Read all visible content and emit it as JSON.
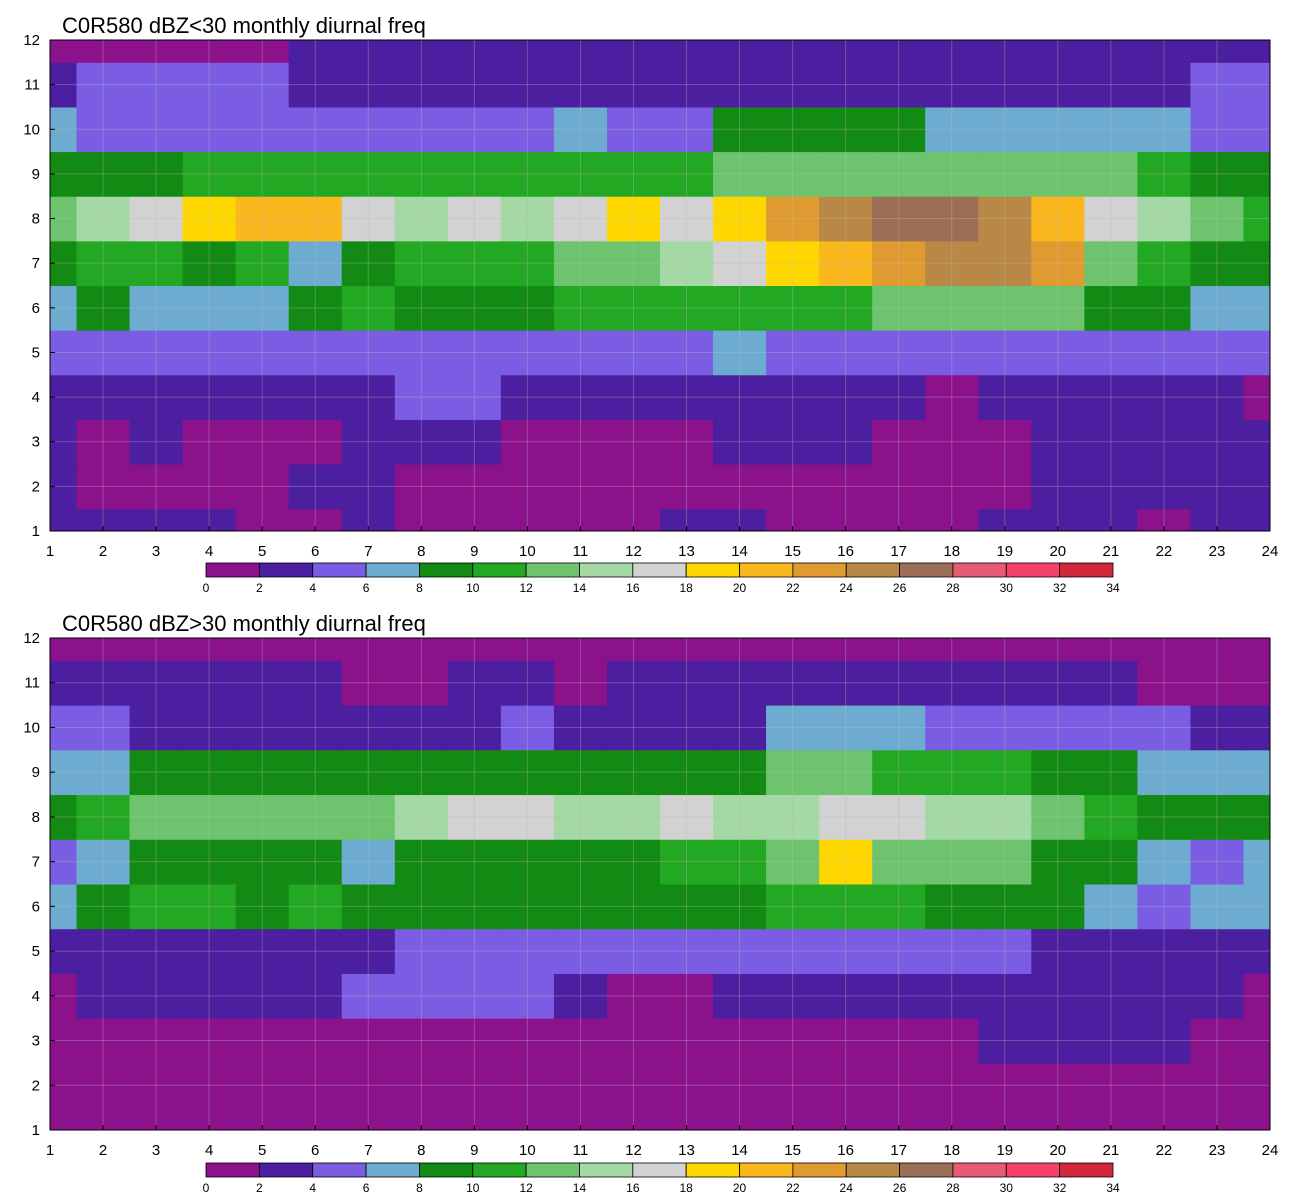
{
  "chart_data": [
    {
      "type": "heatmap",
      "title": "C0R580 dBZ<30 monthly diurnal freq",
      "xlabel": "",
      "ylabel": "",
      "xlim": [
        1,
        24
      ],
      "ylim": [
        1,
        12
      ],
      "x": [
        1,
        2,
        3,
        4,
        5,
        6,
        7,
        8,
        9,
        10,
        11,
        12,
        13,
        14,
        15,
        16,
        17,
        18,
        19,
        20,
        21,
        22,
        23,
        24
      ],
      "y": [
        1,
        2,
        3,
        4,
        5,
        6,
        7,
        8,
        9,
        10,
        11,
        12
      ],
      "z": [
        [
          3,
          3,
          3,
          3,
          1,
          1,
          2,
          1,
          1,
          1,
          1,
          1,
          3,
          3,
          1,
          1,
          1,
          1,
          3,
          3,
          3,
          1,
          3,
          3
        ],
        [
          3,
          1,
          1,
          1,
          1,
          2,
          2,
          1,
          1,
          1,
          1,
          1,
          1,
          1,
          1,
          1,
          1,
          1,
          1,
          3,
          3,
          3,
          3,
          3
        ],
        [
          3,
          1,
          3,
          1,
          1,
          1,
          3,
          3,
          3,
          1,
          1,
          1,
          1,
          3,
          3,
          3,
          1,
          1,
          1,
          3,
          3,
          3,
          3,
          3
        ],
        [
          3,
          3,
          3,
          3,
          3,
          3,
          3,
          5,
          5,
          3,
          3,
          3,
          3,
          3,
          3,
          3,
          3,
          1,
          3,
          3,
          3,
          3,
          3,
          1
        ],
        [
          5,
          5,
          5,
          5,
          5,
          5,
          5,
          5,
          5,
          5,
          5,
          5,
          5,
          7,
          5,
          5,
          5,
          5,
          5,
          5,
          5,
          5,
          5,
          5
        ],
        [
          7,
          9,
          7,
          7,
          7,
          9,
          11,
          9,
          9,
          9,
          11,
          11,
          11,
          11,
          11,
          11,
          13,
          13,
          13,
          13,
          9,
          9,
          7,
          7
        ],
        [
          9,
          11,
          11,
          9,
          11,
          7,
          9,
          11,
          11,
          11,
          13,
          13,
          15,
          17,
          19,
          21,
          23,
          25,
          25,
          23,
          13,
          11,
          9,
          9
        ],
        [
          13,
          15,
          17,
          19,
          21,
          21,
          17,
          15,
          17,
          15,
          17,
          19,
          17,
          19,
          23,
          25,
          27,
          27,
          25,
          21,
          17,
          15,
          13,
          11
        ],
        [
          9,
          9,
          9,
          11,
          11,
          11,
          11,
          11,
          11,
          11,
          11,
          11,
          11,
          13,
          13,
          13,
          13,
          13,
          13,
          13,
          13,
          11,
          9,
          9
        ],
        [
          7,
          5,
          5,
          5,
          5,
          5,
          5,
          5,
          5,
          5,
          7,
          5,
          5,
          9,
          9,
          9,
          9,
          7,
          7,
          7,
          7,
          7,
          5,
          5
        ],
        [
          3,
          5,
          5,
          5,
          5,
          3,
          3,
          3,
          3,
          3,
          3,
          3,
          3,
          3,
          3,
          3,
          3,
          3,
          3,
          3,
          3,
          3,
          5,
          5
        ],
        [
          1,
          1,
          1,
          1,
          1,
          3,
          3,
          3,
          3,
          3,
          3,
          3,
          3,
          3,
          3,
          3,
          3,
          3,
          3,
          3,
          3,
          3,
          3,
          3
        ]
      ],
      "colorbar": {
        "ticks": [
          "0",
          "2",
          "4",
          "6",
          "8",
          "10",
          "12",
          "14",
          "16",
          "18",
          "20",
          "22",
          "24",
          "26",
          "28",
          "30",
          "32",
          "34"
        ],
        "colors": [
          "#8b128b",
          "#4b1fa0",
          "#7a5de3",
          "#6eabd0",
          "#138a14",
          "#22a822",
          "#6ec46e",
          "#a4d8a4",
          "#d2d2d2",
          "#ffd700",
          "#fab81e",
          "#e09b30",
          "#b98846",
          "#9c6e55",
          "#e65a73",
          "#f5426b",
          "#d2283c"
        ]
      }
    },
    {
      "type": "heatmap",
      "title": "C0R580 dBZ>30 monthly diurnal freq",
      "xlabel": "",
      "ylabel": "",
      "xlim": [
        1,
        24
      ],
      "ylim": [
        1,
        12
      ],
      "x": [
        1,
        2,
        3,
        4,
        5,
        6,
        7,
        8,
        9,
        10,
        11,
        12,
        13,
        14,
        15,
        16,
        17,
        18,
        19,
        20,
        21,
        22,
        23,
        24
      ],
      "y": [
        1,
        2,
        3,
        4,
        5,
        6,
        7,
        8,
        9,
        10,
        11,
        12
      ],
      "z": [
        [
          1,
          1,
          1,
          1,
          1,
          1,
          1,
          1,
          1,
          1,
          1,
          1,
          1,
          1,
          1,
          1,
          1,
          1,
          1,
          1,
          1,
          1,
          1,
          1
        ],
        [
          1,
          1,
          1,
          1,
          1,
          1,
          1,
          1,
          1,
          1,
          1,
          1,
          1,
          1,
          1,
          1,
          1,
          1,
          1,
          1,
          1,
          1,
          1,
          1
        ],
        [
          1,
          1,
          1,
          1,
          1,
          1,
          1,
          1,
          1,
          1,
          1,
          1,
          1,
          1,
          1,
          1,
          1,
          1,
          3,
          3,
          3,
          3,
          1,
          1
        ],
        [
          1,
          3,
          3,
          3,
          3,
          3,
          5,
          5,
          5,
          5,
          3,
          1,
          1,
          3,
          3,
          3,
          3,
          3,
          3,
          3,
          3,
          3,
          3,
          1
        ],
        [
          3,
          3,
          3,
          3,
          3,
          3,
          3,
          5,
          5,
          5,
          5,
          5,
          5,
          5,
          5,
          5,
          5,
          5,
          5,
          3,
          3,
          3,
          3,
          3
        ],
        [
          7,
          9,
          11,
          11,
          9,
          11,
          9,
          9,
          9,
          9,
          9,
          9,
          9,
          9,
          11,
          11,
          11,
          9,
          9,
          9,
          7,
          5,
          7,
          7
        ],
        [
          5,
          7,
          9,
          9,
          9,
          9,
          7,
          9,
          9,
          9,
          9,
          9,
          11,
          11,
          13,
          19,
          13,
          13,
          13,
          9,
          9,
          7,
          5,
          7
        ],
        [
          9,
          11,
          13,
          13,
          13,
          13,
          13,
          15,
          17,
          17,
          15,
          15,
          17,
          15,
          15,
          17,
          17,
          15,
          15,
          13,
          11,
          9,
          9,
          9
        ],
        [
          7,
          7,
          9,
          9,
          9,
          9,
          9,
          9,
          9,
          9,
          9,
          9,
          9,
          9,
          13,
          13,
          11,
          11,
          11,
          9,
          9,
          7,
          7,
          7
        ],
        [
          5,
          5,
          3,
          3,
          3,
          3,
          3,
          3,
          3,
          5,
          3,
          3,
          3,
          3,
          7,
          7,
          7,
          5,
          5,
          5,
          5,
          5,
          3,
          3
        ],
        [
          3,
          3,
          3,
          3,
          3,
          3,
          1,
          1,
          3,
          3,
          1,
          3,
          3,
          3,
          3,
          3,
          3,
          3,
          3,
          3,
          3,
          1,
          1,
          1
        ],
        [
          1,
          1,
          1,
          1,
          1,
          1,
          1,
          1,
          1,
          1,
          1,
          1,
          1,
          1,
          1,
          1,
          1,
          1,
          1,
          1,
          1,
          1,
          1,
          1
        ]
      ],
      "colorbar": {
        "ticks": [
          "0",
          "2",
          "4",
          "6",
          "8",
          "10",
          "12",
          "14",
          "16",
          "18",
          "20",
          "22",
          "24",
          "26",
          "28",
          "30",
          "32",
          "34"
        ],
        "colors": [
          "#8b128b",
          "#4b1fa0",
          "#7a5de3",
          "#6eabd0",
          "#138a14",
          "#22a822",
          "#6ec46e",
          "#a4d8a4",
          "#d2d2d2",
          "#ffd700",
          "#fab81e",
          "#e09b30",
          "#b98846",
          "#9c6e55",
          "#e65a73",
          "#f5426b",
          "#d2283c"
        ]
      }
    }
  ]
}
